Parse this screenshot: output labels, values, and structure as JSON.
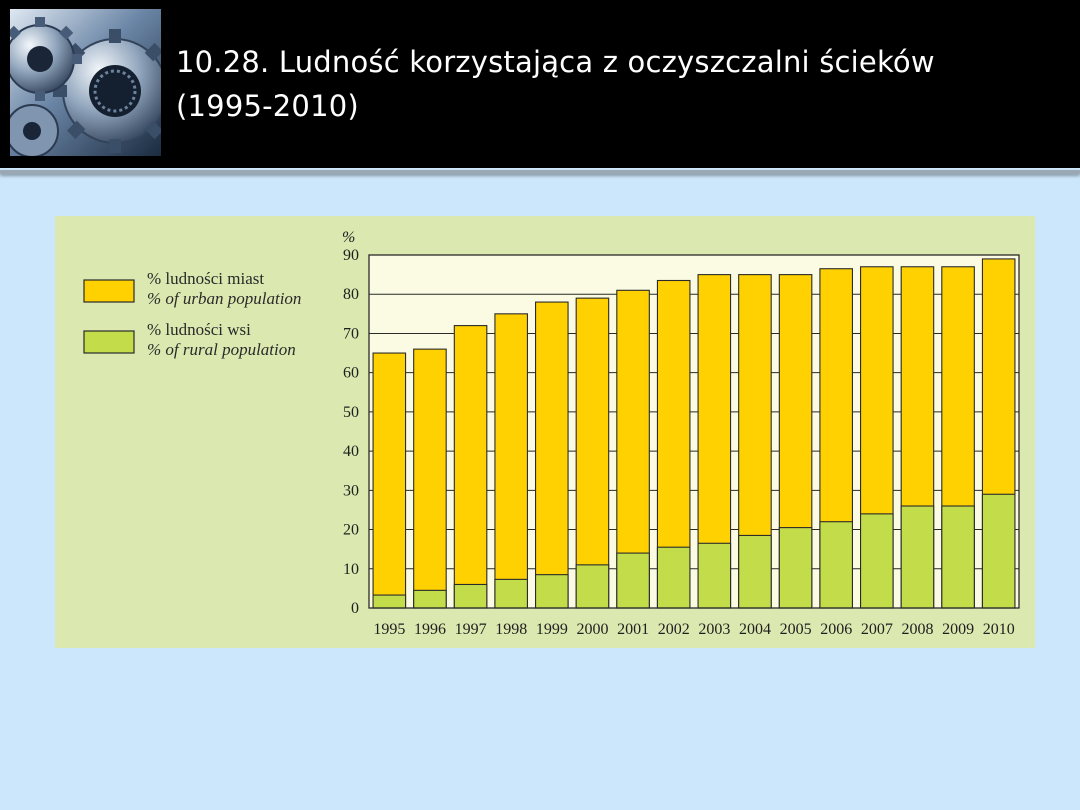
{
  "slide": {
    "title_line1": "10.28. Ludność korzystająca z oczyszczalni ścieków",
    "title_line2": "(1995-2010)"
  },
  "icons": {
    "logo": "gears-icon"
  },
  "colors": {
    "header_bg": "#000000",
    "slide_bg": "#cce7fb",
    "panel_bg": "#dbe8b0",
    "plot_bg": "#fbfbe3",
    "urban": "#ffd100",
    "rural": "#c2dc4a"
  },
  "chart_data": {
    "type": "bar",
    "ylabel": "%",
    "ylim": [
      0,
      90
    ],
    "yticks": [
      0,
      10,
      20,
      30,
      40,
      50,
      60,
      70,
      80,
      90
    ],
    "grid": true,
    "legend_position": "left",
    "categories": [
      "1995",
      "1996",
      "1997",
      "1998",
      "1999",
      "2000",
      "2001",
      "2002",
      "2003",
      "2004",
      "2005",
      "2006",
      "2007",
      "2008",
      "2009",
      "2010"
    ],
    "series": [
      {
        "name_pl": "% ludności miast",
        "name_en": "% of urban population",
        "color": "#ffd100",
        "values": [
          65,
          66,
          72,
          75,
          78,
          79,
          81,
          83.5,
          85,
          85,
          85,
          86.5,
          87,
          87,
          87,
          89
        ]
      },
      {
        "name_pl": "% ludności wsi",
        "name_en": "% of rural population",
        "color": "#c2dc4a",
        "values": [
          3.3,
          4.5,
          6,
          7.3,
          8.5,
          11,
          14,
          15.5,
          16.5,
          18.5,
          20.5,
          22,
          24,
          26,
          26,
          29
        ]
      }
    ]
  }
}
